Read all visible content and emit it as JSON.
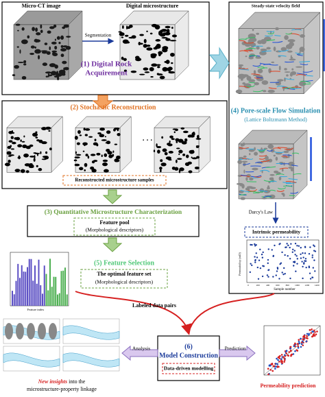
{
  "stage1": {
    "label_ct": "Micro-CT image",
    "label_digital": "Digital microstructure",
    "arrow": "Segmentation",
    "title": [
      "(1) Digital Rock",
      "Acquirement"
    ]
  },
  "stage2": {
    "title": "(2) Stochastic Reconstruction",
    "dots": "· · ·",
    "caption": "Reconstructed microstructure samples"
  },
  "stage3": {
    "title": "(3) Quantitative Microstructure Characterization",
    "pool": "Feature pool",
    "pool_sub": "(Morphological descriptors)"
  },
  "stage5": {
    "title": "(5) Feature Selection",
    "set": "The optimal feature set",
    "set_sub": "(Morphological descriptors)",
    "x_label": "Feature index"
  },
  "stage4": {
    "field": "Steady-state velocity field",
    "title": "(4) Pore-scale Flow Simulation",
    "subtitle": "(Lattice Boltzmann Method)",
    "darcy": "Darcy's Law",
    "result": "Intrinsic permeability",
    "x_label": "Sample number",
    "y_label": "Permeability (mD)",
    "xticks": [
      "0",
      "200",
      "400",
      "600",
      "800",
      "1000",
      "1200",
      "1400"
    ]
  },
  "link": "Labeled data pairs",
  "stage6": {
    "title": [
      "(6)",
      "Model Construction"
    ],
    "sub": "Data-driven modelling",
    "analysis": "Analysis",
    "prediction": "Prediction"
  },
  "insights": {
    "lead": "New insights",
    "rest": " into the",
    "line2": "microstructure-property linkage"
  },
  "prediction_panel": {
    "title": "Permeability prediction"
  }
}
